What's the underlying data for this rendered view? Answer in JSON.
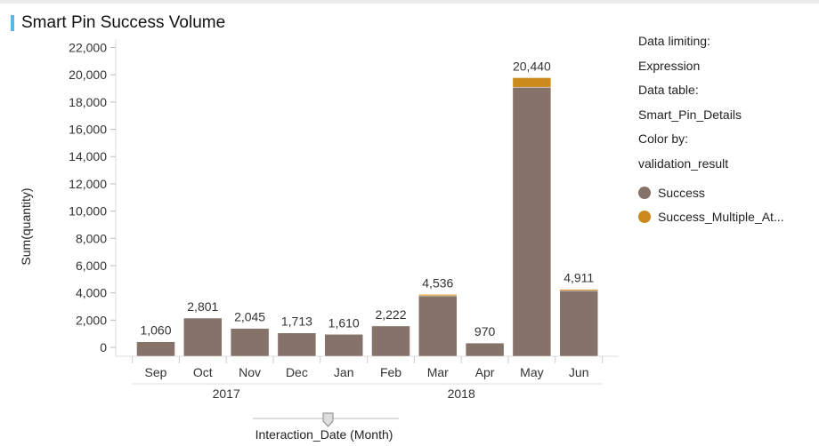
{
  "title": "Smart Pin Success Volume",
  "side": {
    "limiting_label": "Data limiting:",
    "limiting_value": "Expression",
    "table_label": "Data table:",
    "table_value": "Smart_Pin_Details",
    "color_label": "Color by:",
    "color_value": "validation_result"
  },
  "legend": [
    {
      "name": "Success",
      "color": "#85736a"
    },
    {
      "name": "Success_Multiple_At...",
      "color": "#cc8a1c"
    }
  ],
  "slider": {
    "label": "Interaction_Date (Month)"
  },
  "chart_data": {
    "type": "bar",
    "stacked": true,
    "categories": [
      "Sep",
      "Oct",
      "Nov",
      "Dec",
      "Jan",
      "Feb",
      "Mar",
      "Apr",
      "May",
      "Jun"
    ],
    "groups": [
      {
        "label": "2017",
        "from": 0,
        "to": 3
      },
      {
        "label": "2018",
        "from": 4,
        "to": 9
      }
    ],
    "series": [
      {
        "name": "Success",
        "color": "#85736a",
        "values": [
          1060,
          2801,
          2045,
          1713,
          1610,
          2222,
          4436,
          970,
          19740,
          4811
        ]
      },
      {
        "name": "Success_Multiple_At...",
        "color": "#cc8a1c",
        "values": [
          0,
          0,
          0,
          0,
          0,
          0,
          100,
          0,
          700,
          100
        ]
      }
    ],
    "totals": [
      "1,060",
      "2,801",
      "2,045",
      "1,713",
      "1,610",
      "2,222",
      "4,536",
      "970",
      "20,440",
      "4,911"
    ],
    "ylabel": "Sum(quantity)",
    "xlabel": "",
    "ylim": [
      0,
      22000
    ],
    "yticks": [
      "0",
      "2,000",
      "4,000",
      "6,000",
      "8,000",
      "10,000",
      "12,000",
      "14,000",
      "16,000",
      "18,000",
      "20,000",
      "22,000"
    ]
  }
}
